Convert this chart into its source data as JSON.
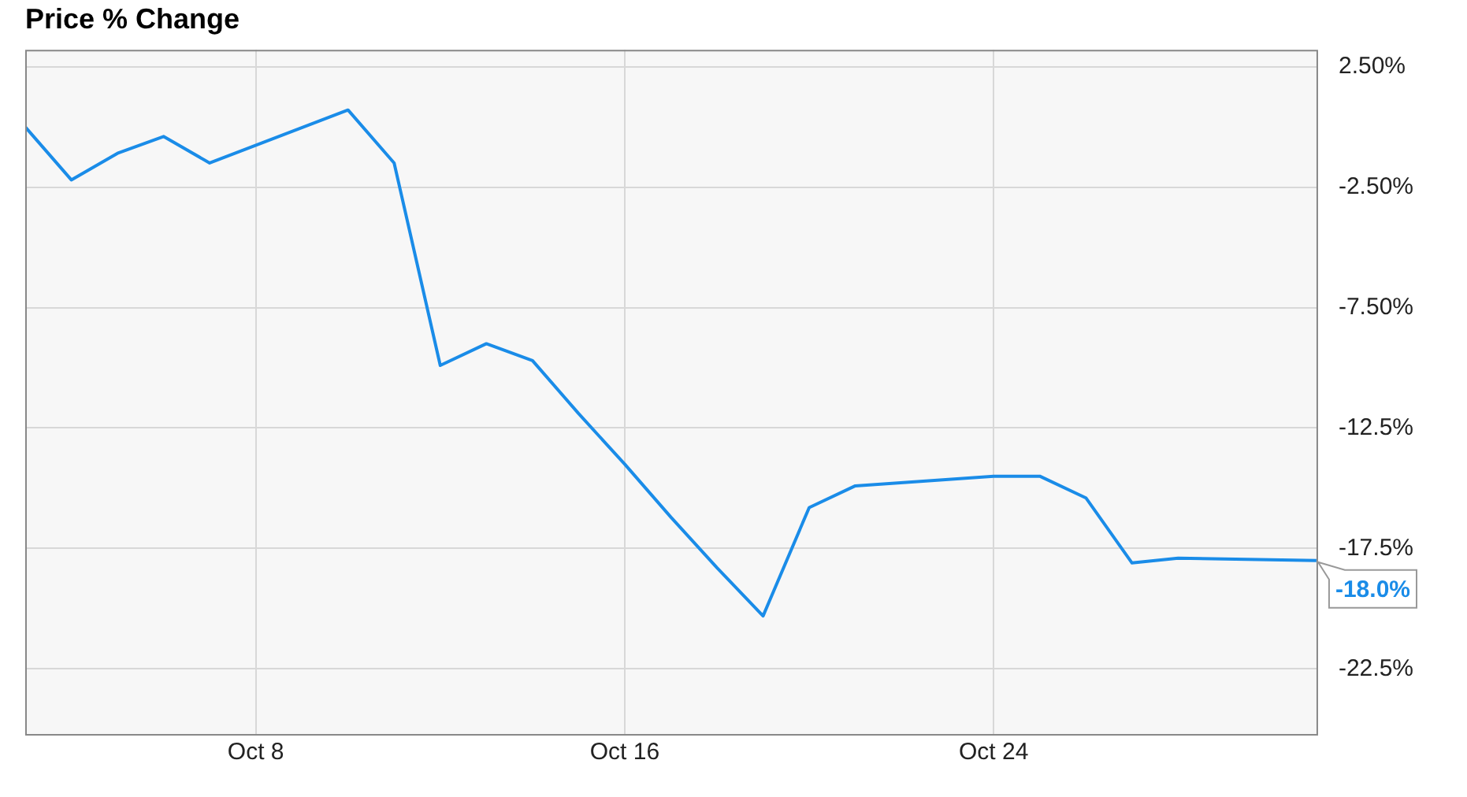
{
  "chart_data": {
    "type": "line",
    "title": "Price % Change",
    "x": [
      "--10-03",
      "--10-04",
      "--10-05",
      "--10-06",
      "--10-07",
      "--10-10",
      "--10-11",
      "--10-12",
      "--10-13",
      "--10-14",
      "--10-15",
      "--10-16",
      "--10-17",
      "--10-18",
      "--10-19",
      "--10-20",
      "--10-21",
      "--10-24",
      "--10-25",
      "--10-26",
      "--10-27",
      "--10-28",
      "--10-31"
    ],
    "series": [
      {
        "color": "#1a8ce8",
        "values": [
          0.0,
          -2.2,
          -1.1,
          -0.4,
          -1.5,
          0.7,
          -1.5,
          -9.9,
          -9.0,
          -9.7,
          -11.9,
          -14.0,
          -16.2,
          -18.3,
          -20.3,
          -15.8,
          -14.9,
          -14.5,
          -14.5,
          -15.4,
          -18.1,
          -17.9,
          -18.0
        ]
      }
    ],
    "xlim": [
      "--10-03",
      "--10-31"
    ],
    "xticks": [
      {
        "value": "--10-08",
        "label": "Oct 8"
      },
      {
        "value": "--10-16",
        "label": "Oct 16"
      },
      {
        "value": "--10-24",
        "label": "Oct 24"
      }
    ],
    "ylim": [
      -25.2,
      3.2
    ],
    "yticks": [
      {
        "value": 2.5,
        "label": "2.50%"
      },
      {
        "value": -2.5,
        "label": "-2.50%"
      },
      {
        "value": -7.5,
        "label": "-7.50%"
      },
      {
        "value": -12.5,
        "label": "-12.5%"
      },
      {
        "value": -17.5,
        "label": "-17.5%"
      },
      {
        "value": -22.5,
        "label": "-22.5%"
      }
    ],
    "grid": true,
    "legend": false,
    "marker": "none",
    "line_style": "solid",
    "annotations": [
      {
        "text": "-18.0%",
        "x": "--10-31",
        "y": -18.0
      }
    ]
  }
}
